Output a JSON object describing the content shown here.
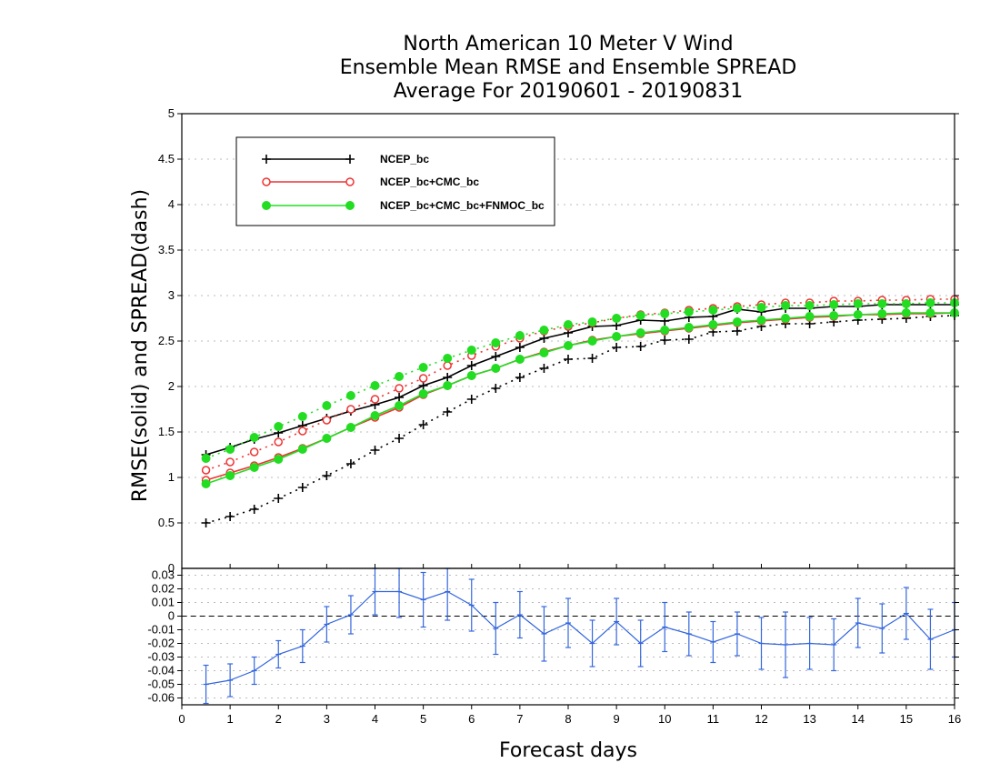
{
  "title": {
    "line1": "North American 10 Meter V Wind",
    "line2": "Ensemble Mean RMSE and Ensemble SPREAD",
    "line3": "Average For 20190601 - 20190831"
  },
  "colors": {
    "black": "#000000",
    "red": "#ee3333",
    "green": "#22dd22",
    "blue": "#3366dd",
    "grid": "#bbbbbb"
  },
  "chart_data": [
    {
      "type": "line",
      "ylabel": "RMSE(solid)  and  SPREAD(dash)",
      "xlim": [
        0,
        16
      ],
      "ylim": [
        0,
        5
      ],
      "yticks": [
        "0.5",
        "1",
        "1.5",
        "2",
        "2.5",
        "3",
        "3.5",
        "4",
        "4.5",
        "5"
      ],
      "grid": "horizontal dotted",
      "legend_position": "top-left",
      "x": [
        0.5,
        1,
        1.5,
        2,
        2.5,
        3,
        3.5,
        4,
        4.5,
        5,
        5.5,
        6,
        6.5,
        7,
        7.5,
        8,
        8.5,
        9,
        9.5,
        10,
        10.5,
        11,
        11.5,
        12,
        12.5,
        13,
        13.5,
        14,
        14.5,
        15,
        15.5,
        16
      ],
      "series": [
        {
          "name": "NCEP_bc",
          "color": "#000000",
          "marker": "plus",
          "rmse": [
            1.25,
            1.33,
            1.42,
            1.49,
            1.57,
            1.65,
            1.73,
            1.8,
            1.88,
            2.01,
            2.1,
            2.23,
            2.33,
            2.43,
            2.53,
            2.59,
            2.66,
            2.67,
            2.73,
            2.72,
            2.76,
            2.77,
            2.85,
            2.82,
            2.86,
            2.86,
            2.88,
            2.88,
            2.9,
            2.9,
            2.9,
            2.9
          ],
          "spread": [
            0.5,
            0.57,
            0.65,
            0.77,
            0.89,
            1.02,
            1.15,
            1.3,
            1.43,
            1.58,
            1.72,
            1.86,
            1.98,
            2.1,
            2.2,
            2.3,
            2.31,
            2.43,
            2.44,
            2.51,
            2.52,
            2.6,
            2.61,
            2.66,
            2.69,
            2.69,
            2.71,
            2.73,
            2.74,
            2.75,
            2.77,
            2.78
          ]
        },
        {
          "name": "NCEP_bc+CMC_bc",
          "color": "#ee3333",
          "marker": "open-circle",
          "rmse": [
            0.97,
            1.05,
            1.13,
            1.22,
            1.32,
            1.43,
            1.55,
            1.66,
            1.77,
            1.91,
            2.01,
            2.12,
            2.2,
            2.3,
            2.38,
            2.45,
            2.51,
            2.55,
            2.58,
            2.61,
            2.64,
            2.67,
            2.7,
            2.72,
            2.74,
            2.76,
            2.77,
            2.79,
            2.79,
            2.8,
            2.8,
            2.81
          ],
          "spread": [
            1.08,
            1.17,
            1.28,
            1.39,
            1.51,
            1.63,
            1.75,
            1.86,
            1.98,
            2.09,
            2.23,
            2.34,
            2.44,
            2.53,
            2.61,
            2.66,
            2.7,
            2.75,
            2.79,
            2.81,
            2.84,
            2.86,
            2.88,
            2.9,
            2.92,
            2.92,
            2.94,
            2.94,
            2.95,
            2.95,
            2.96,
            2.96
          ]
        },
        {
          "name": "NCEP_bc+CMC_bc+FNMOC_bc",
          "color": "#22dd22",
          "marker": "filled-circle",
          "rmse": [
            0.93,
            1.02,
            1.11,
            1.2,
            1.31,
            1.43,
            1.55,
            1.68,
            1.79,
            1.92,
            2.01,
            2.12,
            2.2,
            2.3,
            2.37,
            2.45,
            2.5,
            2.55,
            2.59,
            2.62,
            2.65,
            2.68,
            2.71,
            2.73,
            2.75,
            2.77,
            2.78,
            2.79,
            2.8,
            2.81,
            2.81,
            2.81
          ],
          "spread": [
            1.21,
            1.31,
            1.44,
            1.56,
            1.67,
            1.79,
            1.9,
            2.01,
            2.11,
            2.21,
            2.31,
            2.4,
            2.48,
            2.56,
            2.62,
            2.68,
            2.71,
            2.75,
            2.78,
            2.8,
            2.82,
            2.84,
            2.86,
            2.87,
            2.89,
            2.89,
            2.9,
            2.91,
            2.91,
            2.91,
            2.92,
            2.92
          ]
        }
      ]
    },
    {
      "type": "line",
      "xlabel": "Forecast days",
      "xlim": [
        0,
        16
      ],
      "ylim": [
        -0.065,
        0.035
      ],
      "xticks": [
        "0",
        "1",
        "2",
        "3",
        "4",
        "5",
        "6",
        "7",
        "8",
        "9",
        "10",
        "11",
        "12",
        "13",
        "14",
        "15",
        "16"
      ],
      "yticks": [
        "-0.06",
        "-0.05",
        "-0.04",
        "-0.03",
        "-0.02",
        "-0.01",
        "0",
        "0.01",
        "0.02",
        "0.03"
      ],
      "top_tick": "0",
      "grid": "horizontal dotted",
      "x": [
        0.5,
        1,
        1.5,
        2,
        2.5,
        3,
        3.5,
        4,
        4.5,
        5,
        5.5,
        6,
        6.5,
        7,
        7.5,
        8,
        8.5,
        9,
        9.5,
        10,
        10.5,
        11,
        11.5,
        12,
        12.5,
        13,
        13.5,
        14,
        14.5,
        15,
        15.5,
        16
      ],
      "series": [
        {
          "color": "#3366dd",
          "values": [
            -0.05,
            -0.047,
            -0.04,
            -0.028,
            -0.022,
            -0.006,
            0.001,
            0.018,
            0.018,
            0.012,
            0.018,
            0.008,
            -0.009,
            0.001,
            -0.013,
            -0.005,
            -0.02,
            -0.004,
            -0.02,
            -0.008,
            -0.013,
            -0.019,
            -0.013,
            -0.02,
            -0.021,
            -0.02,
            -0.021,
            -0.005,
            -0.009,
            0.002,
            -0.017,
            -0.01
          ],
          "errors": [
            0.014,
            0.012,
            0.01,
            0.01,
            0.012,
            0.013,
            0.014,
            0.017,
            0.019,
            0.02,
            0.021,
            0.019,
            0.019,
            0.017,
            0.02,
            0.018,
            0.017,
            0.017,
            0.017,
            0.018,
            0.016,
            0.015,
            0.016,
            0.019,
            0.024,
            0.019,
            0.019,
            0.018,
            0.018,
            0.019,
            0.022,
            0.02
          ]
        }
      ]
    }
  ]
}
